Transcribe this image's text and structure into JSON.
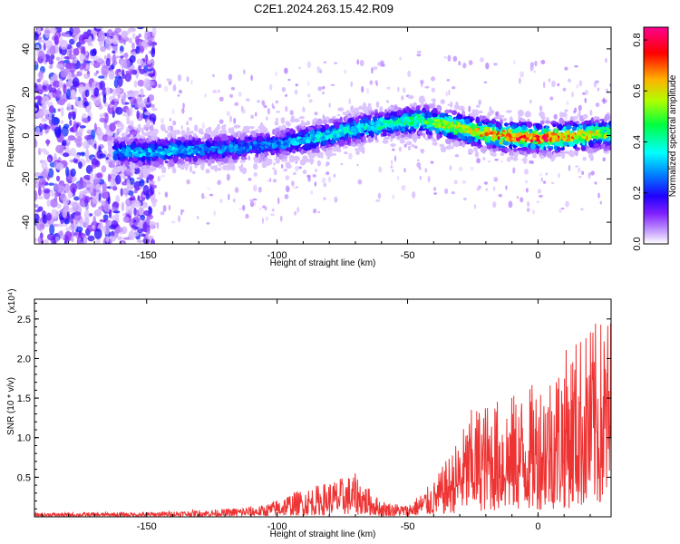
{
  "title": "C2E1.2024.263.15.42.R09",
  "top_panel": {
    "xlabel": "Height of straight line (km)",
    "ylabel": "Frequency (Hz)",
    "colorbar_label": "Normalized spectral amplitude"
  },
  "bottom_panel": {
    "xlabel": "Height of straight line (km)",
    "ylabel": "SNR (10 * v/v)",
    "multiplier_label": "(x10⁴)"
  },
  "chart_data": [
    {
      "type": "heatmap",
      "xlabel": "Height of straight line (km)",
      "ylabel": "Frequency (Hz)",
      "xlim": [
        -193,
        28
      ],
      "ylim": [
        -50,
        50
      ],
      "x_ticks": [
        -150,
        -100,
        -50,
        0
      ],
      "x_tick_labels": [
        "-150",
        "-100",
        "-50",
        "0"
      ],
      "y_ticks": [
        -40,
        -20,
        0,
        20,
        40
      ],
      "y_tick_labels": [
        "-40",
        "-20",
        "0",
        "20",
        "40"
      ],
      "colorbar": {
        "label": "Normalized spectral amplitude",
        "range": [
          0,
          0.85
        ],
        "ticks": [
          0,
          0.2,
          0.4,
          0.6,
          0.8
        ],
        "tick_labels": [
          "0.0",
          "0.2",
          "0.4",
          "0.6",
          "0.8"
        ],
        "colormap": [
          "#ffffff",
          "#a060ff",
          "#4000ff",
          "#0000ff",
          "#00ffff",
          "#00ff00",
          "#ffff00",
          "#ff0000",
          "#ff00ff"
        ]
      },
      "ridge": {
        "x": [
          -160,
          -150,
          -140,
          -120,
          -100,
          -85,
          -70,
          -55,
          -45,
          -35,
          -25,
          -15,
          -5,
          5,
          15,
          28
        ],
        "y": [
          -7,
          -8,
          -7,
          -6,
          -4,
          -1,
          3,
          6,
          7,
          5,
          2,
          0,
          -1,
          -1,
          0,
          1
        ],
        "peak_amplitude": [
          0.35,
          0.35,
          0.35,
          0.3,
          0.3,
          0.4,
          0.4,
          0.45,
          0.5,
          0.6,
          0.65,
          0.75,
          0.8,
          0.8,
          0.7,
          0.55
        ]
      },
      "noise_region_x": [
        -193,
        -147
      ]
    },
    {
      "type": "line",
      "xlabel": "Height of straight line (km)",
      "ylabel": "SNR (10 * v/v)",
      "y_multiplier": "x10^4",
      "xlim": [
        -193,
        28
      ],
      "ylim": [
        0,
        2.75
      ],
      "x_ticks": [
        -150,
        -100,
        -50,
        0
      ],
      "x_tick_labels": [
        "-150",
        "-100",
        "-50",
        "0"
      ],
      "y_ticks": [
        0.5,
        1.0,
        1.5,
        2.0,
        2.5
      ],
      "y_tick_labels": [
        "0.5",
        "1.0",
        "1.5",
        "2.0",
        "2.5"
      ],
      "color": "#ee3333",
      "envelope": {
        "x": [
          -193,
          -150,
          -120,
          -105,
          -95,
          -80,
          -70,
          -60,
          -50,
          -40,
          -32,
          -25,
          -15,
          -5,
          5,
          15,
          28
        ],
        "y": [
          0.05,
          0.06,
          0.1,
          0.15,
          0.3,
          0.45,
          0.55,
          0.2,
          0.15,
          0.45,
          0.9,
          1.4,
          1.5,
          1.6,
          1.9,
          2.3,
          2.6
        ]
      }
    }
  ]
}
